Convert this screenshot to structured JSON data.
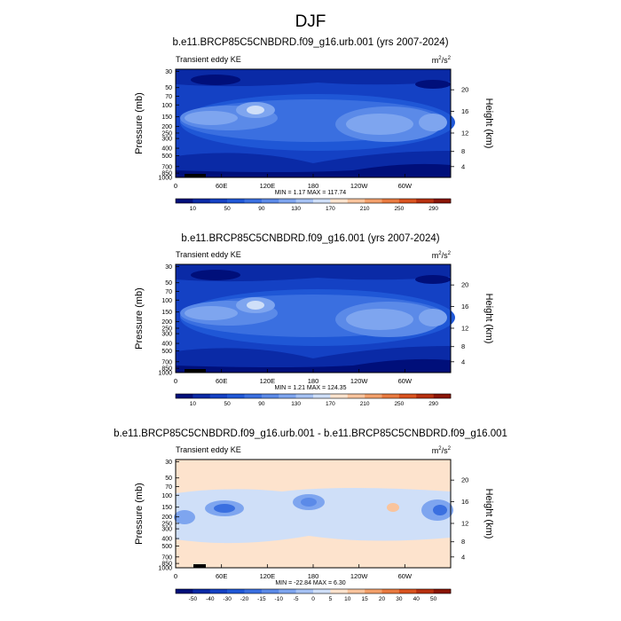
{
  "page_title": "DJF",
  "chart_data": [
    {
      "type": "heatmap",
      "title": "b.e11.BRCP85C5CNBDRD.f09_g16.urb.001 (yrs 2007-2024)",
      "subtitle_left": "Transient eddy KE",
      "units_base": "m",
      "units_exp1": "2",
      "units_mid": "/s",
      "units_exp2": "2",
      "ylabel": "Pressure (mb)",
      "ylabel_right": "Height (km)",
      "x_ticks": [
        "0",
        "60E",
        "120E",
        "180",
        "120W",
        "60W"
      ],
      "y_ticks": [
        "30",
        "50",
        "70",
        "100",
        "150",
        "200",
        "250",
        "300",
        "400",
        "500",
        "700",
        "850",
        "1000"
      ],
      "height_ticks": [
        "20",
        "16",
        "12",
        "8",
        "4"
      ],
      "min": 1.17,
      "max": 117.74,
      "minmax_text": "MIN =   1.17  MAX = 117.74",
      "colorbar_labels": [
        "10",
        "50",
        "90",
        "130",
        "170",
        "210",
        "250",
        "290"
      ],
      "colors": [
        "#000f7a",
        "#0a2aa6",
        "#1441c4",
        "#1f57d6",
        "#3a6fe0",
        "#5b8ae8",
        "#7ea5ef",
        "#a6c2f4",
        "#cfdff8",
        "#fde3cd",
        "#f9c49d",
        "#f3a06b",
        "#e97a40",
        "#d9531f",
        "#b7300f",
        "#8a1505"
      ],
      "zonal_mean_profile": [
        {
          "p": 30,
          "value": 15
        },
        {
          "p": 50,
          "value": 5
        },
        {
          "p": 100,
          "value": 40
        },
        {
          "p": 150,
          "value": 80
        },
        {
          "p": 250,
          "value": 75
        },
        {
          "p": 400,
          "value": 45
        },
        {
          "p": 700,
          "value": 20
        },
        {
          "p": 1000,
          "value": 10
        }
      ]
    },
    {
      "type": "heatmap",
      "title": "b.e11.BRCP85C5CNBDRD.f09_g16.001 (yrs 2007-2024)",
      "subtitle_left": "Transient eddy KE",
      "units_base": "m",
      "units_exp1": "2",
      "units_mid": "/s",
      "units_exp2": "2",
      "ylabel": "Pressure (mb)",
      "ylabel_right": "Height (km)",
      "x_ticks": [
        "0",
        "60E",
        "120E",
        "180",
        "120W",
        "60W"
      ],
      "y_ticks": [
        "30",
        "50",
        "70",
        "100",
        "150",
        "200",
        "250",
        "300",
        "400",
        "500",
        "700",
        "850",
        "1000"
      ],
      "height_ticks": [
        "20",
        "16",
        "12",
        "8",
        "4"
      ],
      "min": 1.21,
      "max": 124.35,
      "minmax_text": "MIN =   1.21  MAX = 124.35",
      "colorbar_labels": [
        "10",
        "50",
        "90",
        "130",
        "170",
        "210",
        "250",
        "290"
      ],
      "colors": [
        "#000f7a",
        "#0a2aa6",
        "#1441c4",
        "#1f57d6",
        "#3a6fe0",
        "#5b8ae8",
        "#7ea5ef",
        "#a6c2f4",
        "#cfdff8",
        "#fde3cd",
        "#f9c49d",
        "#f3a06b",
        "#e97a40",
        "#d9531f",
        "#b7300f",
        "#8a1505"
      ],
      "zonal_mean_profile": [
        {
          "p": 30,
          "value": 15
        },
        {
          "p": 50,
          "value": 5
        },
        {
          "p": 100,
          "value": 42
        },
        {
          "p": 150,
          "value": 85
        },
        {
          "p": 250,
          "value": 78
        },
        {
          "p": 400,
          "value": 46
        },
        {
          "p": 700,
          "value": 20
        },
        {
          "p": 1000,
          "value": 10
        }
      ]
    },
    {
      "type": "heatmap",
      "title": "b.e11.BRCP85C5CNBDRD.f09_g16.urb.001 - b.e11.BRCP85C5CNBDRD.f09_g16.001",
      "subtitle_left": "Transient eddy KE",
      "units_base": "m",
      "units_exp1": "2",
      "units_mid": "/s",
      "units_exp2": "2",
      "ylabel": "Pressure (mb)",
      "ylabel_right": "Height (km)",
      "x_ticks": [
        "0",
        "60E",
        "120E",
        "180",
        "120W",
        "60W"
      ],
      "y_ticks": [
        "30",
        "50",
        "70",
        "100",
        "150",
        "200",
        "250",
        "300",
        "400",
        "500",
        "700",
        "850",
        "1000"
      ],
      "height_ticks": [
        "20",
        "16",
        "12",
        "8",
        "4"
      ],
      "min": -22.84,
      "max": 6.3,
      "minmax_text": "MIN = -22.84  MAX =   6.30",
      "colorbar_labels": [
        "-50",
        "-40",
        "-30",
        "-20",
        "-15",
        "-10",
        "-5",
        "0",
        "5",
        "10",
        "15",
        "20",
        "30",
        "40",
        "50"
      ],
      "colors": [
        "#000f7a",
        "#0a2aa6",
        "#1441c4",
        "#1f57d6",
        "#3a6fe0",
        "#5b8ae8",
        "#7ea5ef",
        "#a6c2f4",
        "#cfdff8",
        "#fde3cd",
        "#f9c49d",
        "#f3a06b",
        "#e97a40",
        "#d9531f",
        "#b7300f",
        "#8a1505"
      ],
      "zonal_mean_profile": [
        {
          "p": 30,
          "value": 1
        },
        {
          "p": 100,
          "value": -1
        },
        {
          "p": 150,
          "value": -6
        },
        {
          "p": 250,
          "value": -3
        },
        {
          "p": 500,
          "value": -1
        },
        {
          "p": 1000,
          "value": 0.5
        }
      ]
    }
  ]
}
